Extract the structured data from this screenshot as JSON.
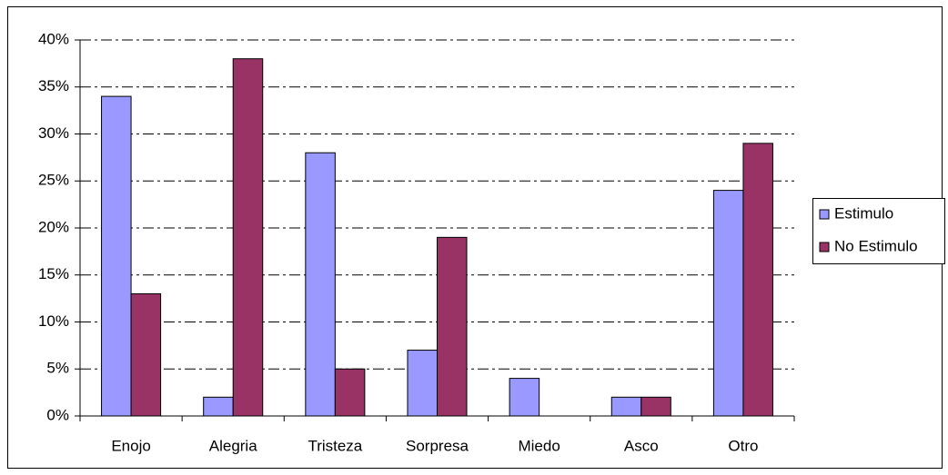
{
  "chart_data": {
    "type": "bar",
    "categories": [
      "Enojo",
      "Alegria",
      "Tristeza",
      "Sorpresa",
      "Miedo",
      "Asco",
      "Otro"
    ],
    "series": [
      {
        "name": "Estimulo",
        "color": "#9999ff",
        "values": [
          34,
          2,
          28,
          7,
          4,
          2,
          24
        ]
      },
      {
        "name": "No Estimulo",
        "color": "#993366",
        "values": [
          13,
          38,
          5,
          19,
          0,
          2,
          29
        ]
      }
    ],
    "ylim": [
      0,
      40
    ],
    "yticks": [
      {
        "value": 0,
        "label": "0%"
      },
      {
        "value": 5,
        "label": "5%"
      },
      {
        "value": 10,
        "label": "10%"
      },
      {
        "value": 15,
        "label": "15%"
      },
      {
        "value": 20,
        "label": "20%"
      },
      {
        "value": 25,
        "label": "25%"
      },
      {
        "value": 30,
        "label": "30%"
      },
      {
        "value": 35,
        "label": "35%"
      },
      {
        "value": 40,
        "label": "40%"
      }
    ],
    "grid": true,
    "legend": "right"
  }
}
